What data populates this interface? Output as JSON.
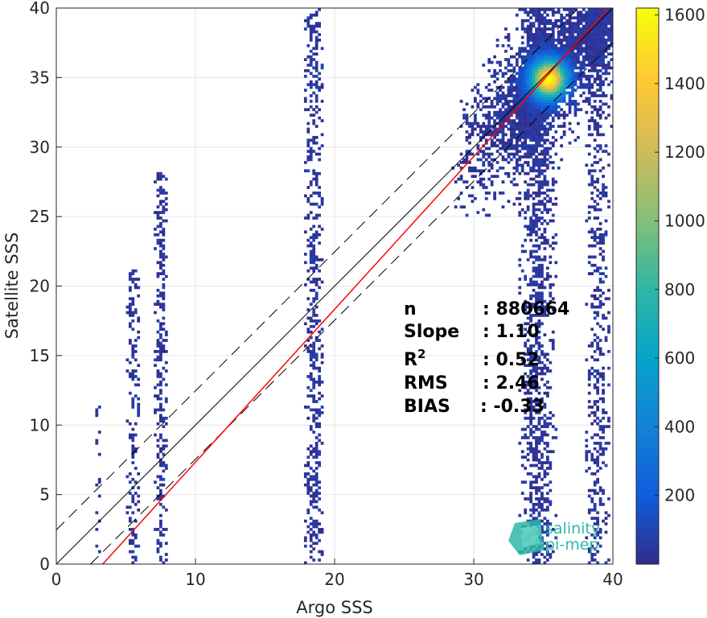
{
  "chart_data": {
    "type": "heatmap",
    "title": "",
    "xlabel": "Argo SSS",
    "ylabel": "Satellite SSS",
    "xlim": [
      0,
      40
    ],
    "ylim": [
      0,
      40
    ],
    "xticks": [
      "0",
      "10",
      "20",
      "30",
      "40"
    ],
    "yticks": [
      "0",
      "5",
      "10",
      "15",
      "20",
      "25",
      "30",
      "35",
      "40"
    ],
    "grid": true,
    "colormap": "parula",
    "colorbar": {
      "range": [
        0,
        1620
      ],
      "ticks": [
        "200",
        "400",
        "600",
        "800",
        "1000",
        "1200",
        "1400",
        "1600"
      ],
      "colors": [
        "#352a87",
        "#0f5cdd",
        "#1481d6",
        "#06a4ca",
        "#2eb7a4",
        "#87bf77",
        "#d1bb59",
        "#fec832",
        "#f9fb0e"
      ]
    },
    "stats": {
      "n": {
        "label": "n",
        "value": ": 880664"
      },
      "slope": {
        "label": "Slope",
        "value": ": 1.10"
      },
      "r2": {
        "label": "R",
        "sup": "2",
        "value": ": 0.52"
      },
      "rms": {
        "label": "RMS",
        "value": ": 2.46"
      },
      "bias": {
        "label": "BIAS",
        "value": ": -0.33"
      }
    },
    "lines": {
      "regression": {
        "slope": 1.1,
        "intercept": -3.67,
        "color": "#ff0000"
      },
      "identity": {
        "slope": 1,
        "intercept": 0,
        "color": "#000000"
      },
      "rms_band_offset": 2.46
    },
    "density_clusters": [
      {
        "x": 2.9,
        "y_range": [
          0,
          12
        ],
        "sx": 0.25,
        "level": 0.18
      },
      {
        "x": 5.4,
        "y_range": [
          0,
          21
        ],
        "sx": 0.35,
        "level": 0.32
      },
      {
        "x": 7.4,
        "y_range": [
          0,
          28
        ],
        "sx": 0.35,
        "level": 0.4
      },
      {
        "x": 18.4,
        "y_range": [
          0,
          40
        ],
        "sx": 0.55,
        "level": 0.38
      },
      {
        "x": 34.5,
        "y_range": [
          0,
          40
        ],
        "sx": 0.9,
        "level": 0.45
      },
      {
        "x": 38.8,
        "y_range": [
          0,
          40
        ],
        "sx": 0.7,
        "level": 0.3
      }
    ],
    "hotspot": {
      "x": 35.3,
      "y": 34.8,
      "peak": 1600
    },
    "logo": {
      "line1": "salinity",
      "line2": "pi-mep"
    }
  }
}
